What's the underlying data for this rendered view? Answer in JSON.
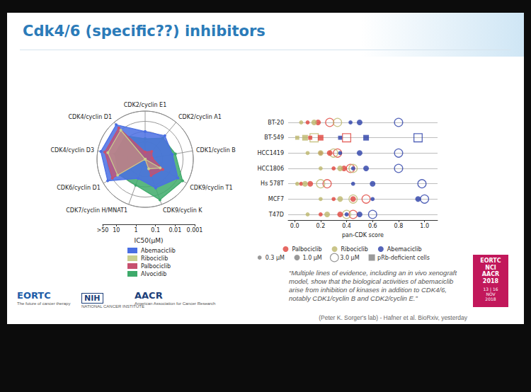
{
  "slide": {
    "title": "Cdk4/6 (specific??) inhibitors",
    "quote": "“Multiple lines of evidence, including an in vivo xenograft model, show that the biological activities of abemaciclib arise from inhibition of kinases in addition to CDK4/6, notably CDK1/cyclin B and CDK2/cyclin E.”",
    "attribution": "(Peter K. Sorger's lab) - Hafner et al. BioRxiv, yesterday",
    "logos": {
      "eortc": "EORTC",
      "eortc_tagline": "The future of cancer therapy",
      "nih": "NIH",
      "nih_tagline": "NATIONAL CANCER INSTITUTE",
      "aacr": "AACR",
      "aacr_tagline": "American Association for Cancer Research"
    },
    "badge": {
      "lines": [
        "EORTC",
        "NCI",
        "AACR",
        "2018"
      ],
      "dates": [
        "13 | 16",
        "NOV",
        "2018"
      ]
    }
  },
  "chart_data": [
    {
      "type": "radar",
      "categories": [
        "CDK2/cyclin E1",
        "CDK2/cyclin A1",
        "CDK1/cyclin B",
        "CDK9/cyclin T1",
        "CDK9/cyclin K",
        "CDK7/cyclin H/MNAT1",
        "CDK6/cyclin D1",
        "CDK4/cyclin D3",
        "CDK4/cyclin D1"
      ],
      "ylabel": "IC50(μM)",
      "log": true,
      "ylim": [
        50,
        0.001
      ],
      "yticks": [
        {
          "value": 50,
          "label": ">50"
        },
        10,
        1,
        0.1,
        0.01,
        0.001
      ],
      "legend": "bottom",
      "series": [
        {
          "name": "Abemaciclib",
          "color": "#4a6fe3",
          "marker": "circle",
          "values": [
            0.1,
            0.05,
            0.1,
            0.01,
            0.05,
            0.5,
            0.003,
            0.002,
            0.002
          ]
        },
        {
          "name": "Ribociclib",
          "color": "#c9cf8e",
          "marker": "circle",
          "values": [
            50,
            50,
            50,
            1,
            5,
            50,
            0.04,
            0.01,
            0.01
          ]
        },
        {
          "name": "Palbociclib",
          "color": "#c7506e",
          "marker": "circle",
          "values": [
            10,
            5,
            10,
            0.5,
            1,
            50,
            0.01,
            0.005,
            0.005
          ]
        },
        {
          "name": "Alvocidib",
          "color": "#3daa6a",
          "marker": "circle",
          "values": [
            0.5,
            0.1,
            0.05,
            0.003,
            0.003,
            0.1,
            0.05,
            0.05,
            0.05
          ]
        }
      ]
    },
    {
      "type": "scatter",
      "categories": [
        "BT-20",
        "BT-549",
        "HCC1419",
        "HCC1806",
        "Hs 578T",
        "MCF7",
        "T47D"
      ],
      "xlabel": "pan-CDK score",
      "xlim": [
        -0.05,
        1.1
      ],
      "xticks": [
        {
          "value": 0,
          "label": "0.0"
        },
        0.2,
        0.4,
        0.6,
        0.8,
        {
          "value": 1,
          "label": "1.0"
        }
      ],
      "grid": true,
      "legend": "bottom",
      "sizes": [
        {
          "value": 0.3,
          "label": "0.3 μM"
        },
        {
          "value": 1,
          "label": "1.0 μM"
        },
        {
          "value": 3,
          "label": "3.0 μM"
        }
      ],
      "prb_label": "pRb-deficient cells",
      "prb_deficient": [
        false,
        true,
        false,
        false,
        false,
        false,
        false
      ],
      "series": [
        {
          "name": "Palbociclib",
          "color": "#e0443c",
          "size": 0.3,
          "marker": "circle",
          "values": [
            0.1,
            0.12,
            0.2,
            0.3,
            0.05,
            0.3,
            0.2
          ]
        },
        {
          "name": "Palbociclib",
          "color": "#e0443c",
          "size": 1,
          "marker": "circle",
          "values": [
            0.18,
            0.2,
            0.27,
            0.38,
            0.12,
            0.45,
            0.35
          ]
        },
        {
          "name": "Palbociclib",
          "color": "#e0443c",
          "size": 3,
          "marker": "ring",
          "values": [
            0.27,
            0.4,
            0.33,
            0.43,
            0.25,
            0.55,
            0.45
          ]
        },
        {
          "name": "Ribociclib",
          "color": "#bdb76b",
          "size": 0.3,
          "marker": "circle",
          "values": [
            0.05,
            0.02,
            0.1,
            0.2,
            0.02,
            0.2,
            0.1
          ]
        },
        {
          "name": "Ribociclib",
          "color": "#bdb76b",
          "size": 1,
          "marker": "circle",
          "values": [
            0.15,
            0.08,
            0.2,
            0.35,
            0.08,
            0.35,
            0.25
          ]
        },
        {
          "name": "Ribociclib",
          "color": "#bdb76b",
          "size": 3,
          "marker": "ring",
          "values": [
            0.33,
            0.15,
            0.3,
            0.45,
            0.2,
            0.45,
            0.4
          ]
        },
        {
          "name": "Abemaciclib",
          "color": "#2b3fa8",
          "size": 0.3,
          "marker": "circle",
          "values": [
            0.43,
            0.35,
            0.35,
            0.45,
            0.45,
            0.6,
            0.4
          ]
        },
        {
          "name": "Abemaciclib",
          "color": "#2b3fa8",
          "size": 1,
          "marker": "circle",
          "values": [
            0.5,
            0.55,
            0.5,
            0.55,
            0.6,
            0.95,
            0.5
          ]
        },
        {
          "name": "Abemaciclib",
          "color": "#2b3fa8",
          "size": 3,
          "marker": "ring",
          "values": [
            0.8,
            0.95,
            0.8,
            0.8,
            0.98,
            1.0,
            0.6
          ]
        }
      ]
    }
  ]
}
